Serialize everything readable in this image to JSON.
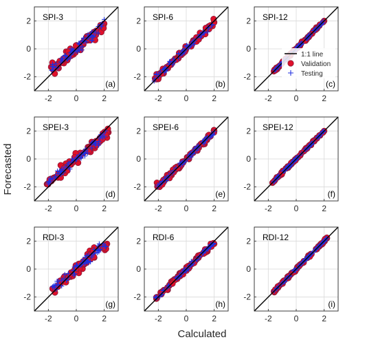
{
  "figure": {
    "xlabel": "Calculated",
    "ylabel": "Forecasted",
    "colors": {
      "validation_fill": "#e0102a",
      "validation_edge": "#8a1a3a",
      "testing": "#1f2fe0",
      "line": "#000000",
      "grid": "#d9d9d9",
      "frame": "#262626"
    },
    "legend": {
      "panel": 2,
      "placement": "lower-right",
      "items": [
        "1:1 line",
        "Validation",
        "Testing"
      ]
    }
  },
  "chart_data": [
    {
      "type": "scatter",
      "title": "SPI-3",
      "tag": "(a)",
      "xlim": [
        -3,
        3
      ],
      "ylim": [
        -3,
        3
      ],
      "xticks": [
        "-2",
        "0",
        "2"
      ],
      "yticks": [
        "-2",
        "0",
        "2"
      ],
      "spread": 0.33,
      "slope": 0.82,
      "seed": 11,
      "series": [
        {
          "name": "Validation",
          "values": [
            [
              -1.8,
              -1.3
            ],
            [
              -1.2,
              -1.0
            ],
            [
              -0.6,
              -0.7
            ],
            [
              -0.2,
              -0.4
            ],
            [
              0.3,
              0.2
            ],
            [
              0.8,
              0.6
            ],
            [
              1.2,
              1.0
            ],
            [
              1.7,
              1.5
            ],
            [
              2.0,
              1.8
            ]
          ]
        },
        {
          "name": "Testing",
          "values": [
            [
              -1.7,
              -1.1
            ],
            [
              -1.0,
              -0.8
            ],
            [
              -0.3,
              -0.3
            ],
            [
              0.2,
              0.0
            ],
            [
              0.7,
              0.5
            ],
            [
              1.1,
              1.2
            ],
            [
              1.8,
              1.6
            ],
            [
              2.0,
              2.1
            ]
          ]
        }
      ]
    },
    {
      "type": "scatter",
      "title": "SPI-6",
      "tag": "(b)",
      "xlim": [
        -3,
        3
      ],
      "ylim": [
        -3,
        3
      ],
      "xticks": [
        "-2",
        "0",
        "2"
      ],
      "yticks": [
        "-2",
        "0",
        "2"
      ],
      "spread": 0.22,
      "slope": 0.95,
      "seed": 23,
      "series": [
        {
          "name": "Validation",
          "values": [
            [
              -2.0,
              -1.9
            ],
            [
              -1.4,
              -1.4
            ],
            [
              -0.8,
              -0.7
            ],
            [
              -0.2,
              -0.2
            ],
            [
              0.4,
              0.4
            ],
            [
              1.0,
              1.0
            ],
            [
              1.6,
              1.6
            ],
            [
              2.0,
              1.9
            ]
          ]
        },
        {
          "name": "Testing",
          "values": [
            [
              -2.3,
              -2.3
            ],
            [
              -1.6,
              -1.5
            ],
            [
              -0.9,
              -0.9
            ],
            [
              0.0,
              0.0
            ],
            [
              0.6,
              0.6
            ],
            [
              1.2,
              1.2
            ],
            [
              1.8,
              1.7
            ]
          ]
        }
      ]
    },
    {
      "type": "scatter",
      "title": "SPI-12",
      "tag": "(c)",
      "xlim": [
        -3,
        3
      ],
      "ylim": [
        -3,
        3
      ],
      "xticks": [
        "-2",
        "0",
        "2"
      ],
      "yticks": [
        "-2",
        "0",
        "2"
      ],
      "spread": 0.07,
      "slope": 1.0,
      "seed": 37,
      "series": [
        {
          "name": "Validation",
          "values": [
            [
              -1.6,
              -1.6
            ],
            [
              -1.0,
              -1.0
            ],
            [
              -0.4,
              -0.4
            ],
            [
              0.2,
              0.2
            ],
            [
              0.8,
              0.8
            ],
            [
              1.5,
              1.5
            ],
            [
              2.0,
              2.0
            ]
          ]
        },
        {
          "name": "Testing",
          "values": [
            [
              -1.5,
              -1.5
            ],
            [
              -0.8,
              -0.8
            ],
            [
              -0.2,
              -0.2
            ],
            [
              0.4,
              0.4
            ],
            [
              1.0,
              1.0
            ],
            [
              1.8,
              1.8
            ]
          ]
        }
      ]
    },
    {
      "type": "scatter",
      "title": "SPEI-3",
      "tag": "(d)",
      "xlim": [
        -3,
        3
      ],
      "ylim": [
        -3,
        3
      ],
      "xticks": [
        "-2",
        "0",
        "2"
      ],
      "yticks": [
        "-2",
        "0",
        "2"
      ],
      "spread": 0.32,
      "slope": 0.85,
      "seed": 41,
      "series": [
        {
          "name": "Validation",
          "values": [
            [
              -2.1,
              -1.8
            ],
            [
              -1.5,
              -1.3
            ],
            [
              -0.9,
              -0.8
            ],
            [
              -0.3,
              -0.2
            ],
            [
              0.3,
              0.2
            ],
            [
              0.9,
              0.8
            ],
            [
              1.5,
              1.3
            ],
            [
              2.3,
              1.9
            ]
          ]
        },
        {
          "name": "Testing",
          "values": [
            [
              -1.9,
              -1.6
            ],
            [
              -1.2,
              -0.9
            ],
            [
              -0.6,
              -0.4
            ],
            [
              0.1,
              0.1
            ],
            [
              0.7,
              0.6
            ],
            [
              1.3,
              1.2
            ],
            [
              2.1,
              2.0
            ]
          ]
        }
      ]
    },
    {
      "type": "scatter",
      "title": "SPEI-6",
      "tag": "(e)",
      "xlim": [
        -3,
        3
      ],
      "ylim": [
        -3,
        3
      ],
      "xticks": [
        "-2",
        "0",
        "2"
      ],
      "yticks": [
        "-2",
        "0",
        "2"
      ],
      "spread": 0.18,
      "slope": 0.97,
      "seed": 53,
      "series": [
        {
          "name": "Validation",
          "values": [
            [
              -2.1,
              -1.7
            ],
            [
              -1.5,
              -1.4
            ],
            [
              -0.8,
              -0.8
            ],
            [
              -0.2,
              -0.2
            ],
            [
              0.5,
              0.5
            ],
            [
              1.1,
              1.1
            ],
            [
              1.7,
              1.6
            ],
            [
              2.0,
              2.0
            ]
          ]
        },
        {
          "name": "Testing",
          "values": [
            [
              -1.7,
              -1.6
            ],
            [
              -1.1,
              -1.0
            ],
            [
              -0.4,
              -0.4
            ],
            [
              0.2,
              0.2
            ],
            [
              0.8,
              0.8
            ],
            [
              1.4,
              1.4
            ],
            [
              1.9,
              1.8
            ]
          ]
        }
      ]
    },
    {
      "type": "scatter",
      "title": "SPEI-12",
      "tag": "(f)",
      "xlim": [
        -3,
        3
      ],
      "ylim": [
        -3,
        3
      ],
      "xticks": [
        "-2",
        "0",
        "2"
      ],
      "yticks": [
        "-2",
        "0",
        "2"
      ],
      "spread": 0.07,
      "slope": 1.0,
      "seed": 61,
      "series": [
        {
          "name": "Validation",
          "values": [
            [
              -1.7,
              -1.7
            ],
            [
              -1.1,
              -1.1
            ],
            [
              -0.5,
              -0.5
            ],
            [
              0.1,
              0.1
            ],
            [
              0.7,
              0.7
            ],
            [
              1.3,
              1.3
            ],
            [
              2.0,
              2.0
            ]
          ]
        },
        {
          "name": "Testing",
          "values": [
            [
              -1.4,
              -1.4
            ],
            [
              -0.8,
              -0.8
            ],
            [
              -0.2,
              -0.2
            ],
            [
              0.4,
              0.4
            ],
            [
              1.0,
              1.0
            ],
            [
              1.6,
              1.6
            ]
          ]
        }
      ]
    },
    {
      "type": "scatter",
      "title": "RDI-3",
      "tag": "(g)",
      "xlim": [
        -3,
        3
      ],
      "ylim": [
        -3,
        3
      ],
      "xticks": [
        "-2",
        "0",
        "2"
      ],
      "yticks": [
        "-2",
        "0",
        "2"
      ],
      "spread": 0.33,
      "slope": 0.85,
      "seed": 71,
      "series": [
        {
          "name": "Validation",
          "values": [
            [
              -1.7,
              -1.4
            ],
            [
              -1.1,
              -1.0
            ],
            [
              -0.5,
              -0.5
            ],
            [
              0.1,
              0.2
            ],
            [
              0.6,
              0.6
            ],
            [
              1.1,
              1.0
            ],
            [
              1.7,
              1.5
            ],
            [
              2.2,
              1.8
            ]
          ]
        },
        {
          "name": "Testing",
          "values": [
            [
              -1.6,
              -1.2
            ],
            [
              -0.9,
              -0.7
            ],
            [
              -0.2,
              -0.1
            ],
            [
              0.4,
              0.4
            ],
            [
              0.9,
              1.0
            ],
            [
              1.5,
              1.4
            ],
            [
              1.9,
              1.6
            ]
          ]
        }
      ]
    },
    {
      "type": "scatter",
      "title": "RDI-6",
      "tag": "(h)",
      "xlim": [
        -3,
        3
      ],
      "ylim": [
        -3,
        3
      ],
      "xticks": [
        "-2",
        "0",
        "2"
      ],
      "yticks": [
        "-2",
        "0",
        "2"
      ],
      "spread": 0.15,
      "slope": 0.95,
      "seed": 83,
      "series": [
        {
          "name": "Validation",
          "values": [
            [
              -2.1,
              -2.0
            ],
            [
              -1.6,
              -1.5
            ],
            [
              -1.0,
              -1.0
            ],
            [
              -0.3,
              -0.3
            ],
            [
              0.3,
              0.3
            ],
            [
              0.9,
              0.9
            ],
            [
              1.5,
              1.4
            ],
            [
              2.0,
              1.8
            ]
          ]
        },
        {
          "name": "Testing",
          "values": [
            [
              -2.2,
              -2.0
            ],
            [
              -1.3,
              -1.2
            ],
            [
              -0.6,
              -0.6
            ],
            [
              0.1,
              0.1
            ],
            [
              0.6,
              0.6
            ],
            [
              1.2,
              1.2
            ],
            [
              1.8,
              1.7
            ]
          ]
        }
      ]
    },
    {
      "type": "scatter",
      "title": "RDI-12",
      "tag": "(i)",
      "xlim": [
        -3,
        3
      ],
      "ylim": [
        -3,
        3
      ],
      "xticks": [
        "-2",
        "0",
        "2"
      ],
      "yticks": [
        "-2",
        "0",
        "2"
      ],
      "spread": 0.07,
      "slope": 1.0,
      "seed": 97,
      "series": [
        {
          "name": "Validation",
          "values": [
            [
              -1.6,
              -1.6
            ],
            [
              -1.0,
              -1.0
            ],
            [
              -0.4,
              -0.4
            ],
            [
              0.2,
              0.2
            ],
            [
              0.8,
              0.8
            ],
            [
              1.5,
              1.5
            ],
            [
              2.2,
              2.2
            ]
          ]
        },
        {
          "name": "Testing",
          "values": [
            [
              -1.4,
              -1.4
            ],
            [
              -0.7,
              -0.7
            ],
            [
              -0.1,
              -0.1
            ],
            [
              0.5,
              0.5
            ],
            [
              1.1,
              1.1
            ],
            [
              1.8,
              1.8
            ]
          ]
        }
      ]
    }
  ]
}
